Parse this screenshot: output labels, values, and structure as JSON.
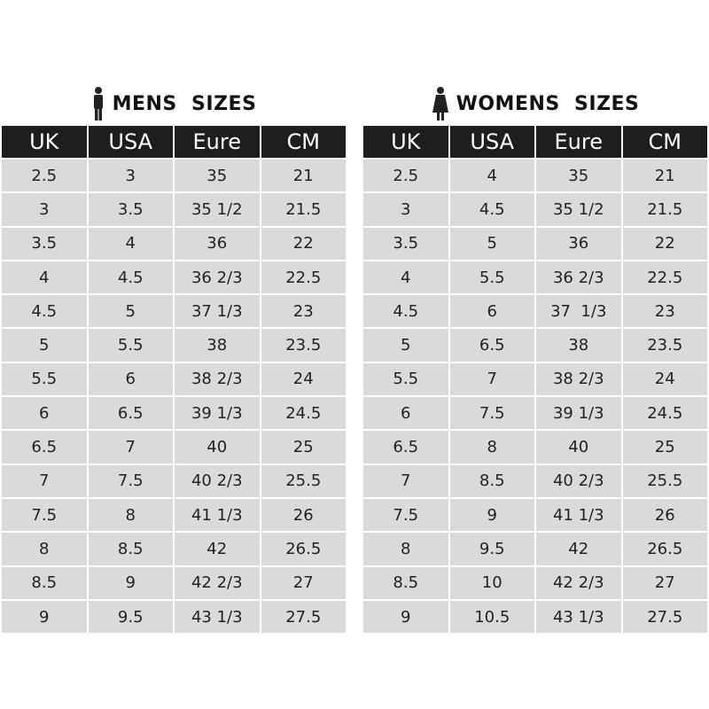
{
  "tables": [
    {
      "title": "MENS  SIZES",
      "header": [
        "UK",
        "USA",
        "Eure",
        "CM"
      ],
      "rows": [
        [
          "2.5",
          "3",
          "35",
          "21"
        ],
        [
          "3",
          "3.5",
          "35 1/2",
          "21.5"
        ],
        [
          "3.5",
          "4",
          "36",
          "22"
        ],
        [
          "4",
          "4.5",
          "36 2/3",
          "22.5"
        ],
        [
          "4.5",
          "5",
          "37 1/3",
          "23"
        ],
        [
          "5",
          "5.5",
          "38",
          "23.5"
        ],
        [
          "5.5",
          "6",
          "38 2/3",
          "24"
        ],
        [
          "6",
          "6.5",
          "39 1/3",
          "24.5"
        ],
        [
          "6.5",
          "7",
          "40",
          "25"
        ],
        [
          "7",
          "7.5",
          "40 2/3",
          "25.5"
        ],
        [
          "7.5",
          "8",
          "41 1/3",
          "26"
        ],
        [
          "8",
          "8.5",
          "42",
          "26.5"
        ],
        [
          "8.5",
          "9",
          "42 2/3",
          "27"
        ],
        [
          "9",
          "9.5",
          "43 1/3",
          "27.5"
        ]
      ]
    },
    {
      "title": "WOMENS  SIZES",
      "header": [
        "UK",
        "USA",
        "Eure",
        "CM"
      ],
      "rows": [
        [
          "2.5",
          "4",
          "35",
          "21"
        ],
        [
          "3",
          "4.5",
          "35 1/2",
          "21.5"
        ],
        [
          "3.5",
          "5",
          "36",
          "22"
        ],
        [
          "4",
          "5.5",
          "36 2/3",
          "22.5"
        ],
        [
          "4.5",
          "6",
          "37  1/3",
          "23"
        ],
        [
          "5",
          "6.5",
          "38",
          "23.5"
        ],
        [
          "5.5",
          "7",
          "38 2/3",
          "24"
        ],
        [
          "6",
          "7.5",
          "39 1/3",
          "24.5"
        ],
        [
          "6.5",
          "8",
          "40",
          "25"
        ],
        [
          "7",
          "8.5",
          "40 2/3",
          "25.5"
        ],
        [
          "7.5",
          "9",
          "41 1/3",
          "26"
        ],
        [
          "8",
          "9.5",
          "42",
          "26.5"
        ],
        [
          "8.5",
          "10",
          "42 2/3",
          "27"
        ],
        [
          "9",
          "10.5",
          "43 1/3",
          "27.5"
        ]
      ]
    }
  ]
}
